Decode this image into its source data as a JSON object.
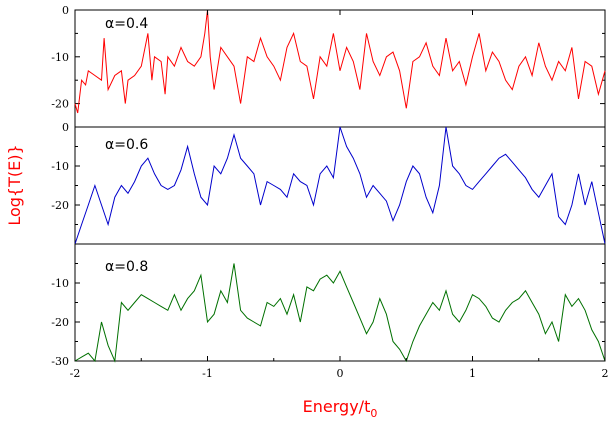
{
  "chart_data": {
    "type": "line",
    "xlabel": "Energy/t",
    "xlabel_subscript": "0",
    "ylabel": "Log{T(E)}",
    "label_color": "#ff0000",
    "xlim": [
      -2,
      2
    ],
    "x_ticks": [
      -2,
      -1,
      0,
      1,
      2
    ],
    "x_tick_labels": [
      "-2",
      "-1",
      "0",
      "1",
      "2"
    ],
    "panels": [
      {
        "label": "α=0.4",
        "color": "#ff0000",
        "ylim": [
          -25,
          0
        ],
        "y_ticks": [
          0,
          -10,
          -20
        ],
        "y_tick_labels": [
          "0",
          "-10",
          "-20"
        ],
        "x": [
          -2,
          -1.98,
          -1.95,
          -1.92,
          -1.9,
          -1.85,
          -1.8,
          -1.78,
          -1.75,
          -1.7,
          -1.65,
          -1.62,
          -1.6,
          -1.55,
          -1.5,
          -1.45,
          -1.42,
          -1.4,
          -1.35,
          -1.32,
          -1.3,
          -1.25,
          -1.2,
          -1.15,
          -1.1,
          -1.05,
          -1.02,
          -1,
          -0.98,
          -0.95,
          -0.9,
          -0.85,
          -0.8,
          -0.75,
          -0.7,
          -0.65,
          -0.6,
          -0.55,
          -0.5,
          -0.45,
          -0.4,
          -0.35,
          -0.3,
          -0.25,
          -0.2,
          -0.15,
          -0.1,
          -0.05,
          0,
          0.05,
          0.1,
          0.15,
          0.2,
          0.25,
          0.3,
          0.35,
          0.4,
          0.45,
          0.5,
          0.55,
          0.6,
          0.65,
          0.7,
          0.75,
          0.8,
          0.85,
          0.9,
          0.95,
          1,
          1.05,
          1.1,
          1.15,
          1.2,
          1.25,
          1.3,
          1.35,
          1.4,
          1.45,
          1.5,
          1.55,
          1.6,
          1.65,
          1.7,
          1.75,
          1.8,
          1.85,
          1.9,
          1.95,
          2
        ],
        "y": [
          -20,
          -22,
          -15,
          -16,
          -13,
          -14,
          -15,
          -6,
          -17,
          -14,
          -13,
          -20,
          -15,
          -14,
          -12,
          -5,
          -15,
          -10,
          -11,
          -18,
          -10,
          -12,
          -8,
          -11,
          -12,
          -10,
          -5,
          0,
          -10,
          -17,
          -8,
          -10,
          -12,
          -20,
          -10,
          -11,
          -6,
          -10,
          -12,
          -15,
          -8,
          -5,
          -11,
          -12,
          -19,
          -10,
          -12,
          -5,
          -13,
          -8,
          -11,
          -17,
          -5,
          -11,
          -14,
          -10,
          -9,
          -13,
          -21,
          -11,
          -10,
          -7,
          -12,
          -14,
          -6,
          -13,
          -11,
          -16,
          -10,
          -5,
          -13,
          -9,
          -11,
          -15,
          -17,
          -12,
          -10,
          -14,
          -7,
          -12,
          -15,
          -11,
          -13,
          -8,
          -19,
          -11,
          -12,
          -18,
          -13
        ]
      },
      {
        "label": "α=0.6",
        "color": "#0000cc",
        "ylim": [
          -30,
          0
        ],
        "y_ticks": [
          0,
          -10,
          -20
        ],
        "y_tick_labels": [
          "0",
          "-10",
          "-20"
        ],
        "x": [
          -2,
          -1.95,
          -1.9,
          -1.85,
          -1.8,
          -1.75,
          -1.7,
          -1.65,
          -1.6,
          -1.55,
          -1.5,
          -1.45,
          -1.4,
          -1.35,
          -1.3,
          -1.25,
          -1.2,
          -1.15,
          -1.1,
          -1.05,
          -1,
          -0.95,
          -0.9,
          -0.85,
          -0.8,
          -0.75,
          -0.7,
          -0.65,
          -0.6,
          -0.55,
          -0.5,
          -0.45,
          -0.4,
          -0.35,
          -0.3,
          -0.25,
          -0.2,
          -0.15,
          -0.1,
          -0.05,
          0,
          0.05,
          0.1,
          0.15,
          0.2,
          0.25,
          0.3,
          0.35,
          0.4,
          0.45,
          0.5,
          0.55,
          0.6,
          0.65,
          0.7,
          0.75,
          0.8,
          0.85,
          0.9,
          0.95,
          1,
          1.05,
          1.1,
          1.15,
          1.2,
          1.25,
          1.3,
          1.35,
          1.4,
          1.45,
          1.5,
          1.55,
          1.6,
          1.65,
          1.7,
          1.75,
          1.8,
          1.85,
          1.9,
          1.95,
          2
        ],
        "y": [
          -30,
          -25,
          -20,
          -15,
          -20,
          -25,
          -18,
          -15,
          -17,
          -14,
          -10,
          -8,
          -12,
          -15,
          -16,
          -15,
          -11,
          -5,
          -12,
          -18,
          -20,
          -10,
          -12,
          -8,
          -2,
          -8,
          -10,
          -12,
          -20,
          -14,
          -15,
          -16,
          -18,
          -12,
          -14,
          -15,
          -20,
          -12,
          -10,
          -13,
          0,
          -5,
          -8,
          -12,
          -18,
          -15,
          -17,
          -19,
          -24,
          -20,
          -14,
          -10,
          -12,
          -18,
          -22,
          -15,
          0,
          -10,
          -12,
          -15,
          -16,
          -14,
          -12,
          -10,
          -8,
          -7,
          -9,
          -11,
          -13,
          -16,
          -18,
          -15,
          -12,
          -23,
          -25,
          -20,
          -12,
          -20,
          -14,
          -22,
          -30
        ]
      },
      {
        "label": "α=0.8",
        "color": "#007000",
        "ylim": [
          -30,
          0
        ],
        "y_ticks": [
          -10,
          -20,
          -30
        ],
        "y_tick_labels": [
          "-10",
          "-20",
          "-30"
        ],
        "x": [
          -2,
          -1.95,
          -1.9,
          -1.85,
          -1.8,
          -1.75,
          -1.7,
          -1.65,
          -1.6,
          -1.55,
          -1.5,
          -1.45,
          -1.4,
          -1.35,
          -1.3,
          -1.25,
          -1.2,
          -1.15,
          -1.1,
          -1.05,
          -1,
          -0.95,
          -0.9,
          -0.85,
          -0.8,
          -0.75,
          -0.7,
          -0.65,
          -0.6,
          -0.55,
          -0.5,
          -0.45,
          -0.4,
          -0.35,
          -0.3,
          -0.25,
          -0.2,
          -0.15,
          -0.1,
          -0.05,
          0,
          0.05,
          0.1,
          0.15,
          0.2,
          0.25,
          0.3,
          0.35,
          0.4,
          0.45,
          0.5,
          0.55,
          0.6,
          0.65,
          0.7,
          0.75,
          0.8,
          0.85,
          0.9,
          0.95,
          1,
          1.05,
          1.1,
          1.15,
          1.2,
          1.25,
          1.3,
          1.35,
          1.4,
          1.45,
          1.5,
          1.55,
          1.6,
          1.65,
          1.7,
          1.75,
          1.8,
          1.85,
          1.9,
          1.95,
          2
        ],
        "y": [
          -30,
          -29,
          -28,
          -30,
          -20,
          -26,
          -30,
          -15,
          -17,
          -15,
          -13,
          -14,
          -15,
          -16,
          -17,
          -13,
          -17,
          -14,
          -12,
          -8,
          -20,
          -18,
          -12,
          -15,
          -5,
          -17,
          -19,
          -20,
          -21,
          -15,
          -16,
          -14,
          -18,
          -13,
          -20,
          -11,
          -12,
          -9,
          -8,
          -10,
          -7,
          -11,
          -15,
          -19,
          -23,
          -20,
          -14,
          -18,
          -25,
          -27,
          -30,
          -25,
          -21,
          -18,
          -15,
          -17,
          -12,
          -18,
          -20,
          -17,
          -13,
          -14,
          -16,
          -19,
          -20,
          -17,
          -15,
          -14,
          -12,
          -15,
          -18,
          -23,
          -20,
          -25,
          -13,
          -16,
          -14,
          -17,
          -22,
          -25,
          -30
        ]
      }
    ]
  }
}
